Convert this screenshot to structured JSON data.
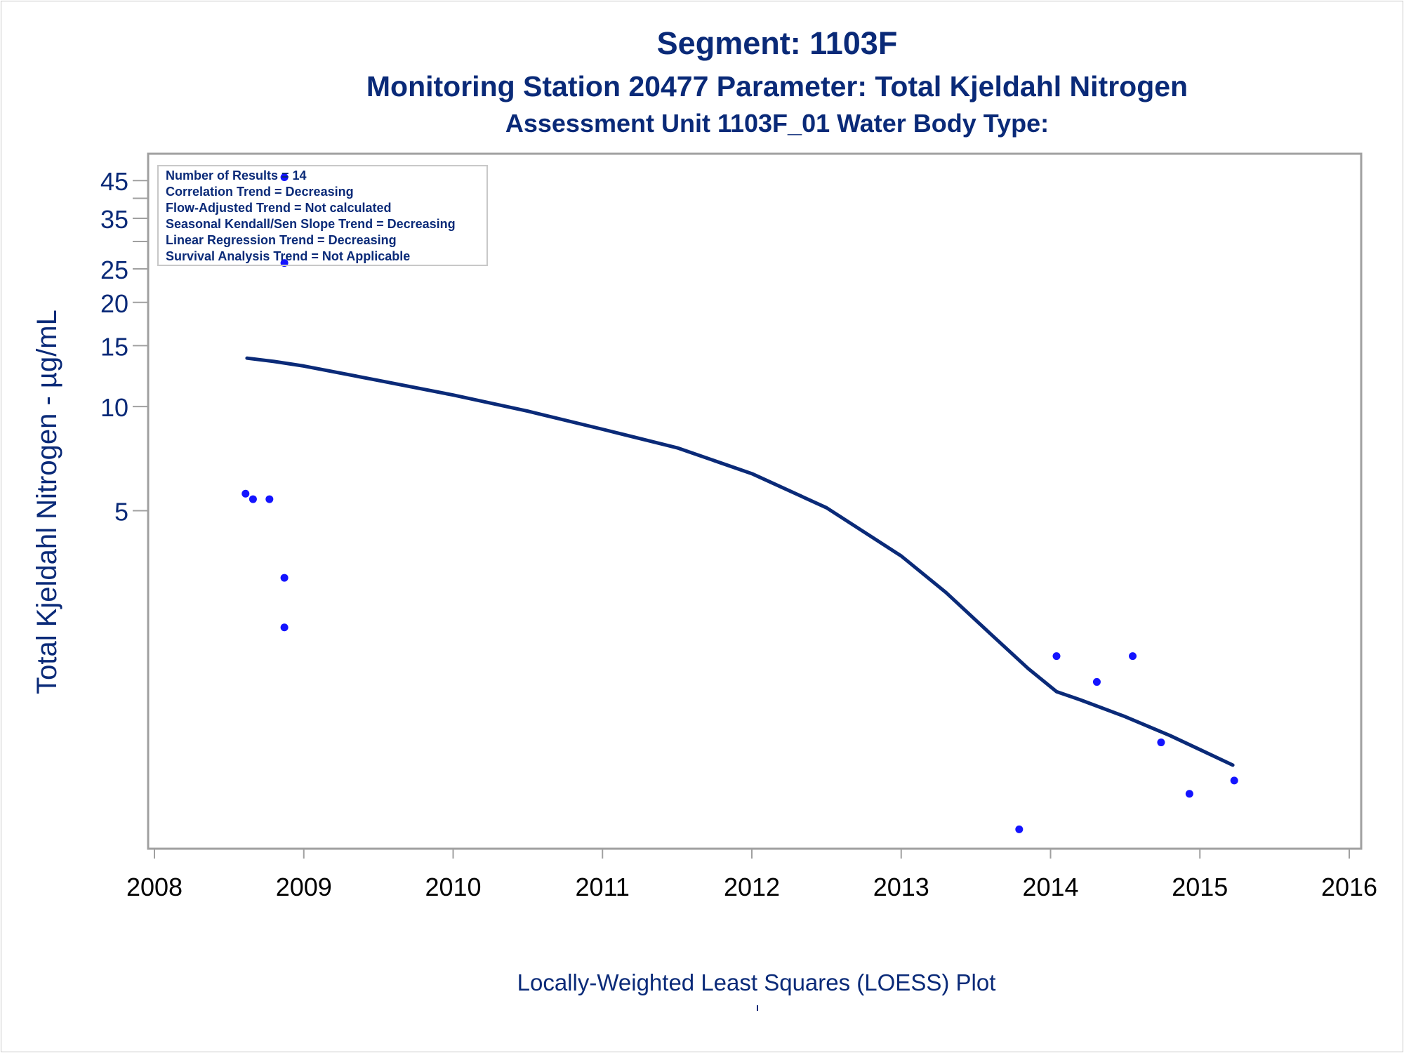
{
  "titles": {
    "line1": "Segment: 1103F",
    "line2": "Monitoring Station 20477 Parameter: Total Kjeldahl Nitrogen",
    "line3": "Assessment Unit 1103F_01   Water Body Type:"
  },
  "footnote": "Locally-Weighted Least Squares (LOESS) Plot",
  "colors": {
    "title": "#0a2a78",
    "axis_text": "#0a2a78",
    "points": "#1414ff",
    "loess_line": "#0a2a78",
    "frame": "#a0a0a0"
  },
  "chart_data": {
    "type": "scatter",
    "title": "",
    "xlabel": "",
    "ylabel": "Total Kjeldahl Nitrogen -  µg/mL",
    "y_scale": "log",
    "xlim": [
      2008,
      2016
    ],
    "ylim": [
      0.55,
      49
    ],
    "x_ticks": [
      2008,
      2009,
      2010,
      2011,
      2012,
      2013,
      2014,
      2015,
      2016
    ],
    "x_tick_labels": [
      "2008",
      "2009",
      "2010",
      "2011",
      "2012",
      "2013",
      "2014",
      "2015",
      "2016"
    ],
    "y_ticks": [
      5,
      10,
      15,
      20,
      25,
      35,
      45
    ],
    "y_tick_labels": [
      "5",
      "10",
      "15",
      "20",
      "25",
      "35",
      "45"
    ],
    "y_minor_ticks": [
      30,
      40
    ],
    "grid": false,
    "legend": "none",
    "annotation_box": {
      "position": "top-left",
      "lines": [
        "Number of Results = 14",
        "Correlation Trend = Decreasing",
        "Flow-Adjusted Trend = Not calculated",
        "Seasonal Kendall/Sen Slope Trend = Decreasing",
        "Linear Regression Trend = Decreasing",
        "Survival Analysis Trend = Not Applicable"
      ]
    },
    "series": [
      {
        "kind": "points",
        "points": [
          {
            "x": 2008.61,
            "y": 5.6
          },
          {
            "x": 2008.66,
            "y": 5.4
          },
          {
            "x": 2008.77,
            "y": 5.4
          },
          {
            "x": 2008.87,
            "y": 46
          },
          {
            "x": 2008.87,
            "y": 26
          },
          {
            "x": 2008.87,
            "y": 3.2
          },
          {
            "x": 2008.87,
            "y": 2.3
          },
          {
            "x": 2013.79,
            "y": 0.6
          },
          {
            "x": 2014.04,
            "y": 1.9
          },
          {
            "x": 2014.31,
            "y": 1.6
          },
          {
            "x": 2014.55,
            "y": 1.9
          },
          {
            "x": 2014.74,
            "y": 1.07
          },
          {
            "x": 2014.93,
            "y": 0.76
          },
          {
            "x": 2015.23,
            "y": 0.83
          }
        ]
      },
      {
        "kind": "line",
        "points": [
          {
            "x": 2008.62,
            "y": 13.8
          },
          {
            "x": 2008.8,
            "y": 13.5
          },
          {
            "x": 2009.0,
            "y": 13.1
          },
          {
            "x": 2009.5,
            "y": 11.9
          },
          {
            "x": 2010.0,
            "y": 10.8
          },
          {
            "x": 2010.5,
            "y": 9.7
          },
          {
            "x": 2011.0,
            "y": 8.6
          },
          {
            "x": 2011.5,
            "y": 7.6
          },
          {
            "x": 2012.0,
            "y": 6.4
          },
          {
            "x": 2012.5,
            "y": 5.1
          },
          {
            "x": 2013.0,
            "y": 3.7
          },
          {
            "x": 2013.3,
            "y": 2.9
          },
          {
            "x": 2013.6,
            "y": 2.2
          },
          {
            "x": 2013.85,
            "y": 1.75
          },
          {
            "x": 2014.04,
            "y": 1.5
          },
          {
            "x": 2014.2,
            "y": 1.42
          },
          {
            "x": 2014.5,
            "y": 1.27
          },
          {
            "x": 2014.8,
            "y": 1.12
          },
          {
            "x": 2015.0,
            "y": 1.02
          },
          {
            "x": 2015.22,
            "y": 0.92
          }
        ]
      }
    ]
  }
}
